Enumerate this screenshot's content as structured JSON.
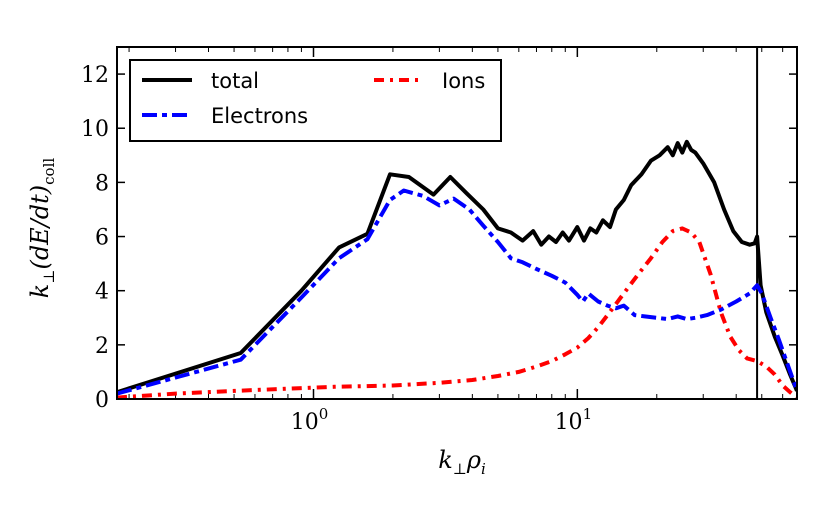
{
  "chart_data": {
    "type": "line",
    "xscale": "log",
    "xlim": [
      0.18,
      68
    ],
    "ylim": [
      0,
      13
    ],
    "ylabel": "k⊥(dE/dt)coll",
    "xlabel": "k⊥ρi",
    "ylabel_parts": {
      "k": "k",
      "perp": "⊥",
      "body": "(dE/dt)",
      "sub": "coll"
    },
    "xlabel_parts": {
      "k": "k",
      "perp": "⊥",
      "rho": "ρ",
      "sub": "i"
    },
    "xticks": [
      {
        "value": 1,
        "base": "10",
        "exp": "0"
      },
      {
        "value": 10,
        "base": "10",
        "exp": "1"
      }
    ],
    "yticks": [
      {
        "value": 0,
        "label": "0"
      },
      {
        "value": 2,
        "label": "2"
      },
      {
        "value": 4,
        "label": "4"
      },
      {
        "value": 6,
        "label": "6"
      },
      {
        "value": 8,
        "label": "8"
      },
      {
        "value": 10,
        "label": "10"
      },
      {
        "value": 12,
        "label": "12"
      }
    ],
    "vline": {
      "x": 48
    },
    "legend": {
      "position": "top-left",
      "columns": 2
    },
    "series": [
      {
        "name": "total",
        "color": "#000000",
        "style": "solid",
        "points": [
          [
            0.18,
            0.25
          ],
          [
            0.53,
            1.7
          ],
          [
            0.9,
            4.0
          ],
          [
            1.25,
            5.6
          ],
          [
            1.6,
            6.1
          ],
          [
            1.95,
            8.3
          ],
          [
            2.3,
            8.2
          ],
          [
            2.85,
            7.55
          ],
          [
            3.3,
            8.2
          ],
          [
            3.8,
            7.6
          ],
          [
            4.4,
            7.0
          ],
          [
            5.0,
            6.3
          ],
          [
            5.6,
            6.15
          ],
          [
            6.2,
            5.85
          ],
          [
            6.8,
            6.2
          ],
          [
            7.3,
            5.7
          ],
          [
            7.8,
            6.0
          ],
          [
            8.3,
            5.8
          ],
          [
            8.8,
            6.15
          ],
          [
            9.3,
            5.85
          ],
          [
            10.0,
            6.35
          ],
          [
            10.6,
            5.85
          ],
          [
            11.2,
            6.3
          ],
          [
            11.8,
            6.15
          ],
          [
            12.5,
            6.6
          ],
          [
            13.3,
            6.35
          ],
          [
            14.0,
            7.0
          ],
          [
            15.0,
            7.35
          ],
          [
            16.0,
            7.9
          ],
          [
            17.5,
            8.3
          ],
          [
            19.0,
            8.8
          ],
          [
            20.5,
            9.0
          ],
          [
            22.0,
            9.3
          ],
          [
            23.0,
            9.0
          ],
          [
            24.0,
            9.45
          ],
          [
            25.0,
            9.1
          ],
          [
            26.0,
            9.5
          ],
          [
            27.0,
            9.2
          ],
          [
            28.0,
            9.1
          ],
          [
            30.0,
            8.7
          ],
          [
            33.0,
            8.0
          ],
          [
            36.0,
            7.0
          ],
          [
            39.0,
            6.2
          ],
          [
            42.0,
            5.8
          ],
          [
            45.0,
            5.7
          ],
          [
            47.0,
            5.75
          ],
          [
            48.0,
            6.0
          ],
          [
            49.5,
            4.2
          ],
          [
            52.0,
            3.2
          ],
          [
            56.0,
            2.3
          ],
          [
            60.0,
            1.6
          ],
          [
            64.0,
            0.9
          ],
          [
            68.0,
            0.3
          ]
        ]
      },
      {
        "name": "Electrons",
        "color": "#0000ff",
        "style": "dashdot",
        "points": [
          [
            0.18,
            0.2
          ],
          [
            0.53,
            1.45
          ],
          [
            0.9,
            3.75
          ],
          [
            1.25,
            5.2
          ],
          [
            1.6,
            5.9
          ],
          [
            1.95,
            7.35
          ],
          [
            2.2,
            7.7
          ],
          [
            2.6,
            7.5
          ],
          [
            3.0,
            7.15
          ],
          [
            3.4,
            7.4
          ],
          [
            3.9,
            7.0
          ],
          [
            4.4,
            6.4
          ],
          [
            5.0,
            5.8
          ],
          [
            5.6,
            5.2
          ],
          [
            6.2,
            5.05
          ],
          [
            7.0,
            4.8
          ],
          [
            8.0,
            4.55
          ],
          [
            9.0,
            4.3
          ],
          [
            10.0,
            3.85
          ],
          [
            10.5,
            3.6
          ],
          [
            11.0,
            3.9
          ],
          [
            12.0,
            3.6
          ],
          [
            13.0,
            3.45
          ],
          [
            14.0,
            3.35
          ],
          [
            15.0,
            3.45
          ],
          [
            16.5,
            3.1
          ],
          [
            18.0,
            3.05
          ],
          [
            20.0,
            3.0
          ],
          [
            22.0,
            2.95
          ],
          [
            24.0,
            3.05
          ],
          [
            26.0,
            2.95
          ],
          [
            28.0,
            3.0
          ],
          [
            31.0,
            3.1
          ],
          [
            35.0,
            3.3
          ],
          [
            40.0,
            3.6
          ],
          [
            45.0,
            3.9
          ],
          [
            48.0,
            4.2
          ],
          [
            50.0,
            3.9
          ],
          [
            54.0,
            3.0
          ],
          [
            58.0,
            2.2
          ],
          [
            62.0,
            1.4
          ],
          [
            68.0,
            0.3
          ]
        ]
      },
      {
        "name": "Ions",
        "color": "#ff0000",
        "style": "dashdot",
        "points": [
          [
            0.18,
            0.05
          ],
          [
            0.3,
            0.2
          ],
          [
            0.5,
            0.3
          ],
          [
            0.8,
            0.38
          ],
          [
            1.2,
            0.45
          ],
          [
            2.0,
            0.5
          ],
          [
            3.0,
            0.6
          ],
          [
            4.0,
            0.7
          ],
          [
            5.0,
            0.85
          ],
          [
            6.0,
            1.0
          ],
          [
            7.0,
            1.2
          ],
          [
            8.0,
            1.4
          ],
          [
            9.0,
            1.65
          ],
          [
            10.0,
            1.9
          ],
          [
            11.0,
            2.25
          ],
          [
            12.0,
            2.65
          ],
          [
            13.5,
            3.3
          ],
          [
            15.0,
            3.9
          ],
          [
            17.0,
            4.6
          ],
          [
            19.0,
            5.2
          ],
          [
            21.0,
            5.8
          ],
          [
            23.0,
            6.2
          ],
          [
            25.0,
            6.3
          ],
          [
            27.0,
            6.15
          ],
          [
            29.0,
            5.8
          ],
          [
            32.0,
            4.6
          ],
          [
            35.0,
            3.2
          ],
          [
            38.0,
            2.3
          ],
          [
            41.0,
            1.8
          ],
          [
            44.0,
            1.5
          ],
          [
            48.0,
            1.4
          ],
          [
            52.0,
            1.2
          ],
          [
            56.0,
            0.9
          ],
          [
            60.0,
            0.5
          ],
          [
            64.0,
            0.25
          ],
          [
            68.0,
            0.05
          ]
        ]
      }
    ]
  }
}
